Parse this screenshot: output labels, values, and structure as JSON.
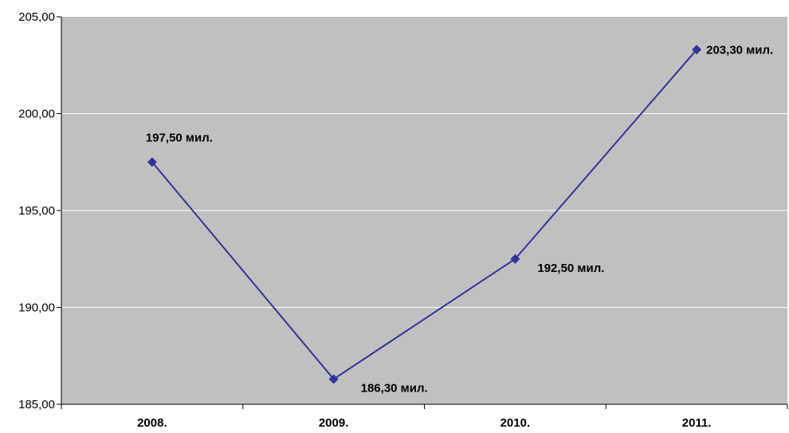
{
  "chart_data": {
    "type": "line",
    "categories": [
      "2008.",
      "2009.",
      "2010.",
      "2011."
    ],
    "values": [
      197.5,
      186.3,
      192.5,
      203.3
    ],
    "data_labels": [
      "197,50  мил.",
      "186,30 мил.",
      "192,50 мил.",
      "203,30 мил."
    ],
    "y_ticks": [
      "185,00",
      "190,00",
      "195,00",
      "200,00",
      "205,00"
    ],
    "ylim": [
      185,
      205
    ],
    "grid": true,
    "legend": "none",
    "colors": {
      "plot_background": "#c0c0c0",
      "line": "#333399",
      "marker": "#333399",
      "gridline": "#ffffff"
    }
  }
}
